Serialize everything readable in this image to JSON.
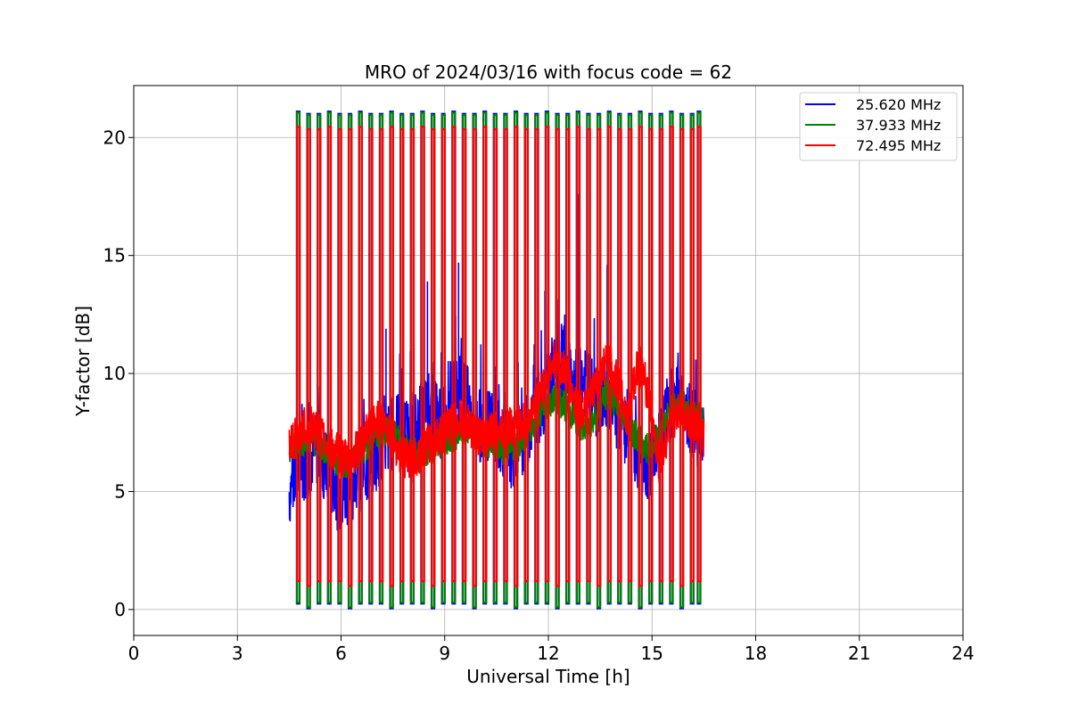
{
  "chart_data": {
    "type": "line",
    "title": "MRO of 2024/03/16 with focus code = 62",
    "xlabel": "Universal Time [h]",
    "ylabel": "Y-factor [dB]",
    "xlim": [
      0,
      24
    ],
    "ylim": [
      -1.1,
      22.2
    ],
    "xticks": [
      0,
      3,
      6,
      9,
      12,
      15,
      18,
      21,
      24
    ],
    "yticks": [
      0,
      5,
      10,
      15,
      20
    ],
    "grid": true,
    "legend_position": "top-right",
    "pulse_times_h": [
      4.72,
      5.02,
      5.32,
      5.62,
      5.92,
      6.22,
      6.52,
      6.82,
      7.12,
      7.42,
      7.72,
      8.02,
      8.32,
      8.62,
      8.92,
      9.22,
      9.52,
      9.82,
      10.12,
      10.42,
      10.72,
      11.02,
      11.32,
      11.62,
      11.92,
      12.22,
      12.52,
      12.82,
      13.12,
      13.42,
      13.72,
      14.02,
      14.32,
      14.62,
      14.92,
      15.22,
      15.52,
      15.82,
      16.12,
      16.32
    ],
    "series": [
      {
        "name": "25.620 MHz",
        "color": "#0000ff",
        "x": [
          4.5,
          4.7,
          5.0,
          5.3,
          5.6,
          5.9,
          6.2,
          6.5,
          6.8,
          7.1,
          7.4,
          7.7,
          8.0,
          8.3,
          8.6,
          8.9,
          9.2,
          9.5,
          9.8,
          10.1,
          10.4,
          10.7,
          11.0,
          11.3,
          11.6,
          11.9,
          12.2,
          12.5,
          12.8,
          13.1,
          13.4,
          13.7,
          14.0,
          14.3,
          14.6,
          14.9,
          15.2,
          15.5,
          15.8,
          16.1,
          16.5
        ],
        "y": [
          5.0,
          5.6,
          6.3,
          6.8,
          5.9,
          4.9,
          5.2,
          5.6,
          6.1,
          6.8,
          7.3,
          7.9,
          7.2,
          8.1,
          8.6,
          7.9,
          8.9,
          9.4,
          8.2,
          7.6,
          7.9,
          7.1,
          6.6,
          7.4,
          8.2,
          9.1,
          10.1,
          10.6,
          9.3,
          9.7,
          8.6,
          8.9,
          8.1,
          7.6,
          6.6,
          6.1,
          7.1,
          8.6,
          9.1,
          8.1,
          7.1
        ],
        "peak_level": 21.0,
        "trough_level": 0.25,
        "spikes": [
          [
            9.0,
            15.1
          ],
          [
            9.4,
            14.7
          ],
          [
            12.3,
            14.1
          ],
          [
            12.85,
            17.6
          ],
          [
            13.7,
            14.6
          ],
          [
            11.9,
            13.5
          ],
          [
            8.5,
            13.9
          ],
          [
            7.3,
            11.9
          ],
          [
            5.1,
            12.3
          ],
          [
            15.9,
            11.8
          ]
        ]
      },
      {
        "name": "37.933 MHz",
        "color": "#008000",
        "x": [
          4.5,
          4.7,
          5.0,
          5.3,
          5.6,
          5.9,
          6.2,
          6.5,
          6.8,
          7.1,
          7.4,
          7.7,
          8.0,
          8.3,
          8.6,
          8.9,
          9.2,
          9.5,
          9.8,
          10.1,
          10.4,
          10.7,
          11.0,
          11.3,
          11.6,
          11.9,
          12.2,
          12.5,
          12.8,
          13.1,
          13.4,
          13.7,
          14.0,
          14.3,
          14.6,
          14.9,
          15.2,
          15.5,
          15.8,
          16.1,
          16.5
        ],
        "y": [
          6.8,
          7.0,
          7.3,
          7.1,
          6.7,
          6.3,
          6.2,
          6.6,
          7.0,
          7.4,
          7.6,
          7.2,
          6.7,
          6.5,
          6.8,
          7.1,
          7.3,
          7.6,
          7.4,
          7.2,
          7.0,
          6.8,
          6.9,
          7.4,
          8.0,
          8.6,
          9.0,
          8.6,
          8.0,
          7.6,
          8.3,
          9.2,
          8.7,
          8.0,
          7.2,
          6.8,
          7.4,
          8.3,
          8.8,
          8.3,
          8.0
        ],
        "peak_level": 20.95,
        "trough_level": 0.3,
        "spikes": []
      },
      {
        "name": "72.495 MHz",
        "color": "#ff0000",
        "x": [
          4.5,
          4.7,
          5.0,
          5.3,
          5.6,
          5.9,
          6.2,
          6.5,
          6.8,
          7.1,
          7.4,
          7.7,
          8.0,
          8.3,
          8.6,
          8.9,
          9.2,
          9.5,
          9.8,
          10.1,
          10.4,
          10.7,
          11.0,
          11.3,
          11.6,
          11.9,
          12.2,
          12.5,
          12.8,
          13.1,
          13.4,
          13.7,
          14.0,
          14.3,
          14.6,
          14.9,
          15.2,
          15.5,
          15.8,
          16.1,
          16.5
        ],
        "y": [
          7.0,
          7.3,
          7.8,
          7.6,
          7.0,
          6.6,
          6.3,
          6.8,
          7.6,
          8.1,
          7.6,
          6.6,
          6.2,
          6.7,
          7.1,
          7.4,
          7.9,
          8.1,
          7.6,
          7.3,
          7.5,
          7.6,
          7.8,
          7.9,
          8.6,
          9.6,
          10.6,
          10.1,
          8.6,
          8.4,
          9.6,
          10.6,
          9.6,
          8.1,
          10.6,
          9.1,
          6.1,
          7.6,
          8.6,
          8.1,
          7.3
        ],
        "peak_level": 20.35,
        "trough_level": 1.2,
        "spikes": []
      }
    ]
  }
}
